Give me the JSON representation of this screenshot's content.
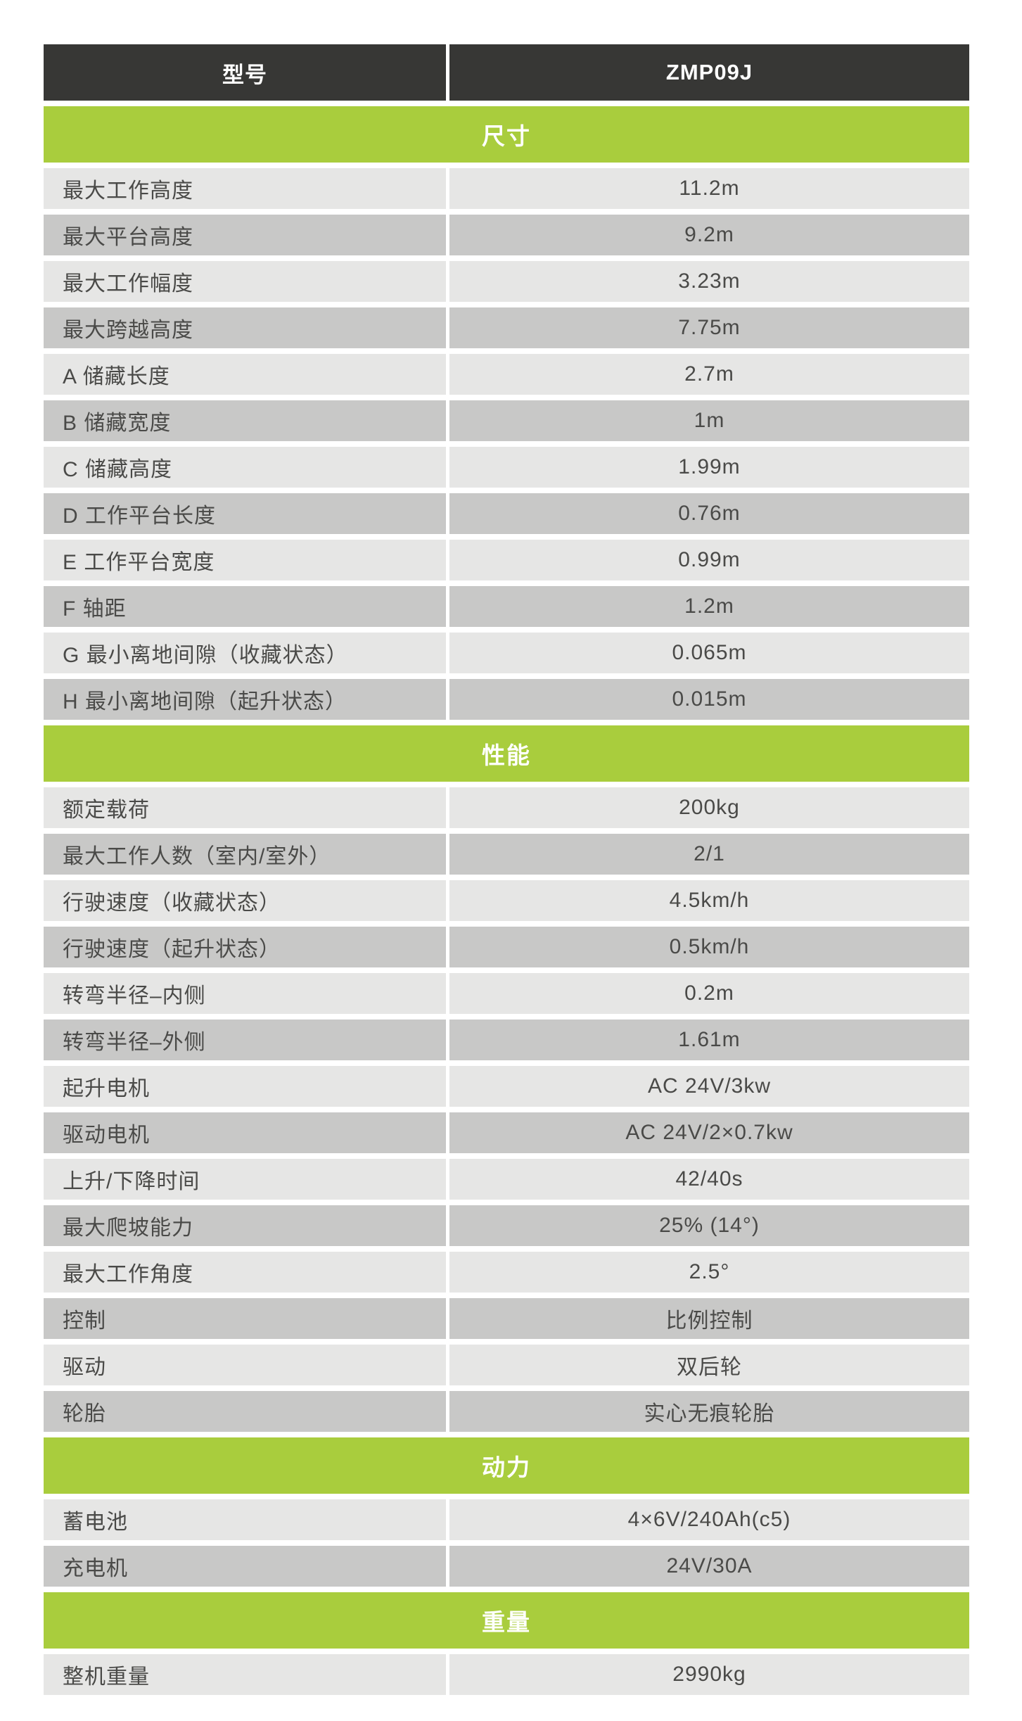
{
  "table": {
    "header": {
      "col1": "型号",
      "col2": "ZMP09J"
    },
    "colors": {
      "header_bg": "#373735",
      "section_bg": "#a9cd3d",
      "row_light": "#e6e6e5",
      "row_dark": "#c8c8c7",
      "text": "#4a4a48"
    },
    "sections": [
      {
        "title": "尺寸",
        "rows": [
          {
            "label": "最大工作高度",
            "value": "11.2m"
          },
          {
            "label": "最大平台高度",
            "value": "9.2m"
          },
          {
            "label": "最大工作幅度",
            "value": "3.23m"
          },
          {
            "label": "最大跨越高度",
            "value": "7.75m"
          },
          {
            "label": "A 储藏长度",
            "value": "2.7m"
          },
          {
            "label": "B 储藏宽度",
            "value": "1m"
          },
          {
            "label": "C 储藏高度",
            "value": "1.99m"
          },
          {
            "label": "D 工作平台长度",
            "value": "0.76m"
          },
          {
            "label": "E 工作平台宽度",
            "value": "0.99m"
          },
          {
            "label": "F 轴距",
            "value": "1.2m"
          },
          {
            "label": "G 最小离地间隙（收藏状态）",
            "value": "0.065m"
          },
          {
            "label": "H 最小离地间隙（起升状态）",
            "value": "0.015m"
          }
        ]
      },
      {
        "title": "性能",
        "rows": [
          {
            "label": "额定载荷",
            "value": "200kg"
          },
          {
            "label": "最大工作人数（室内/室外）",
            "value": "2/1"
          },
          {
            "label": "行驶速度（收藏状态）",
            "value": "4.5km/h"
          },
          {
            "label": "行驶速度（起升状态）",
            "value": "0.5km/h"
          },
          {
            "label": "转弯半径–内侧",
            "value": "0.2m"
          },
          {
            "label": "转弯半径–外侧",
            "value": "1.61m"
          },
          {
            "label": "起升电机",
            "value": "AC 24V/3kw"
          },
          {
            "label": "驱动电机",
            "value": "AC 24V/2×0.7kw"
          },
          {
            "label": "上升/下降时间",
            "value": "42/40s"
          },
          {
            "label": "最大爬坡能力",
            "value": "25% (14°)"
          },
          {
            "label": "最大工作角度",
            "value": "2.5°"
          },
          {
            "label": "控制",
            "value": "比例控制"
          },
          {
            "label": "驱动",
            "value": "双后轮"
          },
          {
            "label": "轮胎",
            "value": "实心无痕轮胎"
          }
        ]
      },
      {
        "title": "动力",
        "rows": [
          {
            "label": "蓄电池",
            "value": "4×6V/240Ah(c5)"
          },
          {
            "label": "充电机",
            "value": "24V/30A"
          }
        ]
      },
      {
        "title": "重量",
        "rows": [
          {
            "label": "整机重量",
            "value": "2990kg"
          }
        ]
      }
    ]
  }
}
